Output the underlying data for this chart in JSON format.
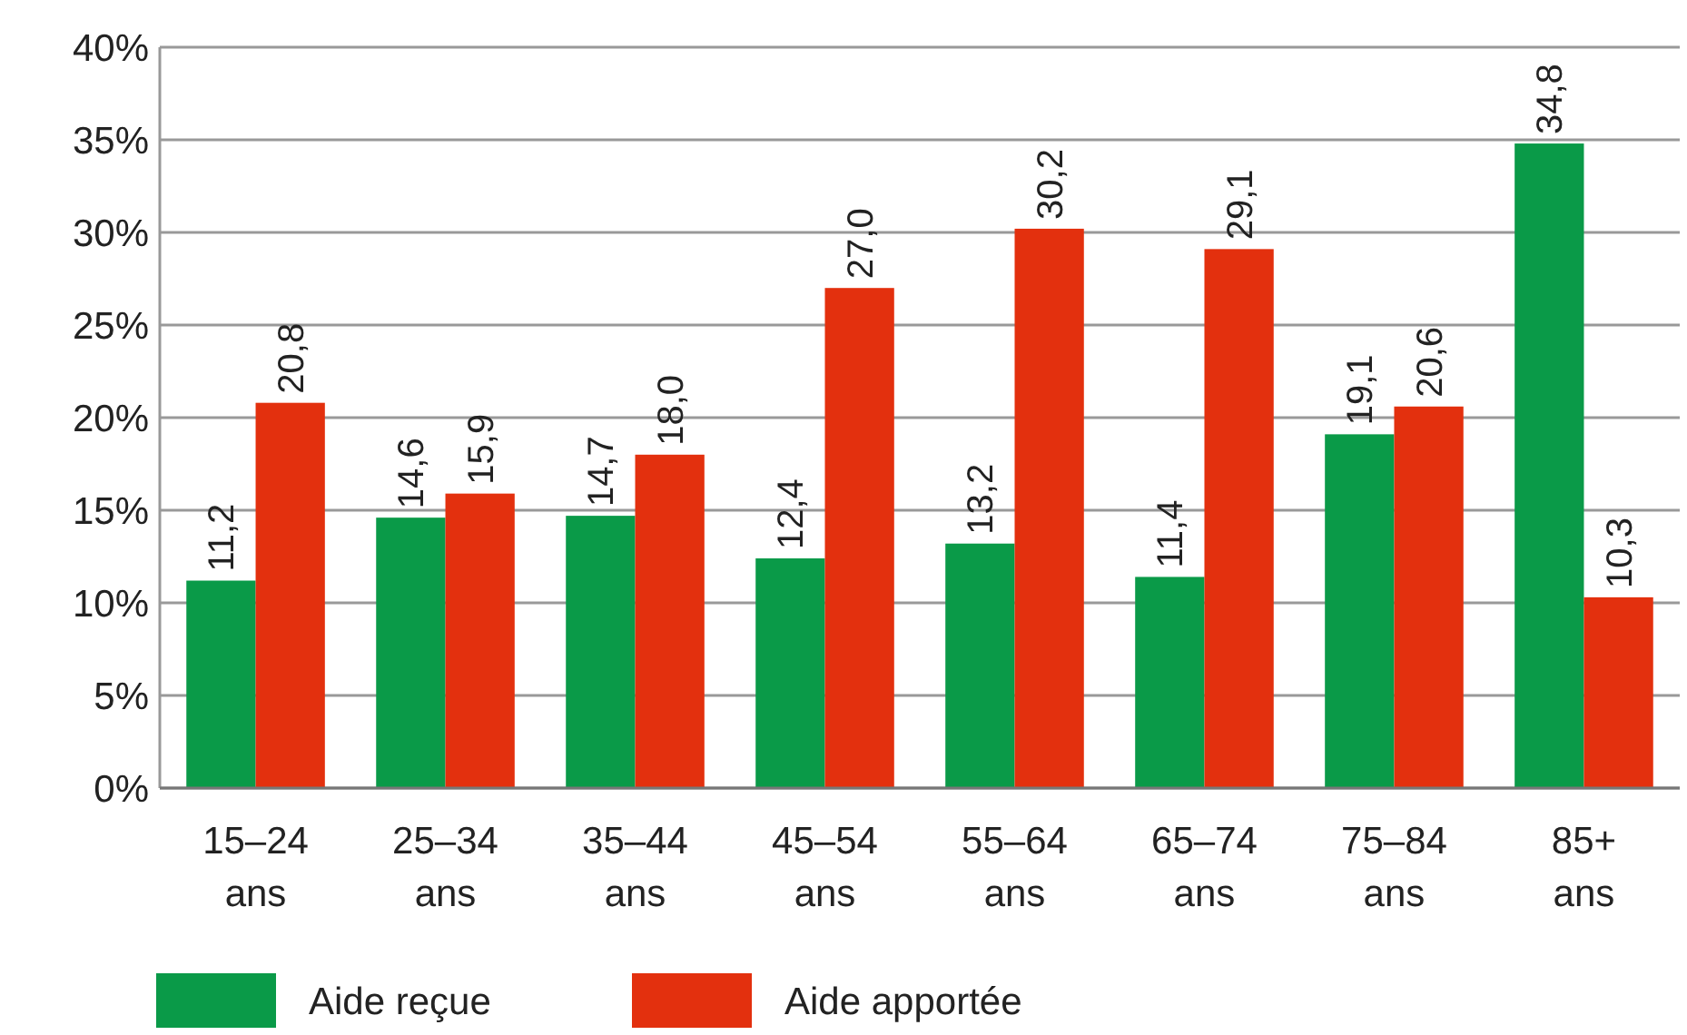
{
  "chart_data": {
    "type": "bar",
    "categories": [
      "15–24 ans",
      "25–34 ans",
      "35–44 ans",
      "45–54 ans",
      "55–64 ans",
      "65–74 ans",
      "75–84 ans",
      "85+ ans"
    ],
    "series": [
      {
        "name": "Aide reçue",
        "color": "#0a9a48",
        "values": [
          11.2,
          14.6,
          14.7,
          12.4,
          13.2,
          11.4,
          19.1,
          34.8
        ],
        "value_labels": [
          "11,2",
          "14,6",
          "14,7",
          "12,4",
          "13,2",
          "11,4",
          "19,1",
          "34,8"
        ]
      },
      {
        "name": "Aide apportée",
        "color": "#e3300e",
        "values": [
          20.8,
          15.9,
          18.0,
          27.0,
          30.2,
          29.1,
          20.6,
          10.3
        ],
        "value_labels": [
          "20,8",
          "15,9",
          "18,0",
          "27,0",
          "30,2",
          "29,1",
          "20,6",
          "10,3"
        ]
      }
    ],
    "ylim": [
      0,
      40
    ],
    "yticks": [
      {
        "value": 0,
        "label": "0%"
      },
      {
        "value": 5,
        "label": "5%"
      },
      {
        "value": 10,
        "label": "10%"
      },
      {
        "value": 15,
        "label": "15%"
      },
      {
        "value": 20,
        "label": "20%"
      },
      {
        "value": 25,
        "label": "25%"
      },
      {
        "value": 30,
        "label": "30%"
      },
      {
        "value": 35,
        "label": "35%"
      },
      {
        "value": 40,
        "label": "40%"
      }
    ],
    "grid": "y",
    "legend": "bottom left"
  }
}
